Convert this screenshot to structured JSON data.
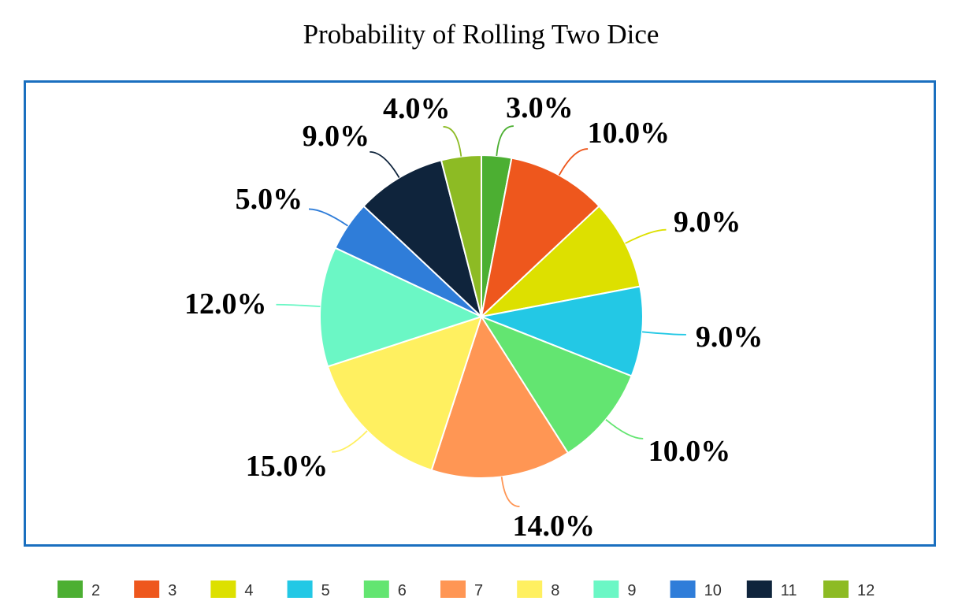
{
  "chart_data": {
    "type": "pie",
    "title": "Probability of Rolling Two Dice",
    "categories": [
      "2",
      "3",
      "4",
      "5",
      "6",
      "7",
      "8",
      "9",
      "10",
      "11",
      "12"
    ],
    "values": [
      3.0,
      10.0,
      9.0,
      9.0,
      10.0,
      14.0,
      15.0,
      12.0,
      5.0,
      9.0,
      4.0
    ],
    "labels": [
      "3.0%",
      "10.0%",
      "9.0%",
      "9.0%",
      "10.0%",
      "14.0%",
      "15.0%",
      "12.0%",
      "5.0%",
      "9.0%",
      "4.0%"
    ],
    "colors": [
      "#4caf32",
      "#ee571d",
      "#dde000",
      "#23c8e5",
      "#63e571",
      "#ff9654",
      "#fff060",
      "#6bf7c5",
      "#2f7dd9",
      "#0f243c",
      "#8dbb24"
    ],
    "legend_position": "bottom",
    "start_angle": "top, clockwise"
  }
}
